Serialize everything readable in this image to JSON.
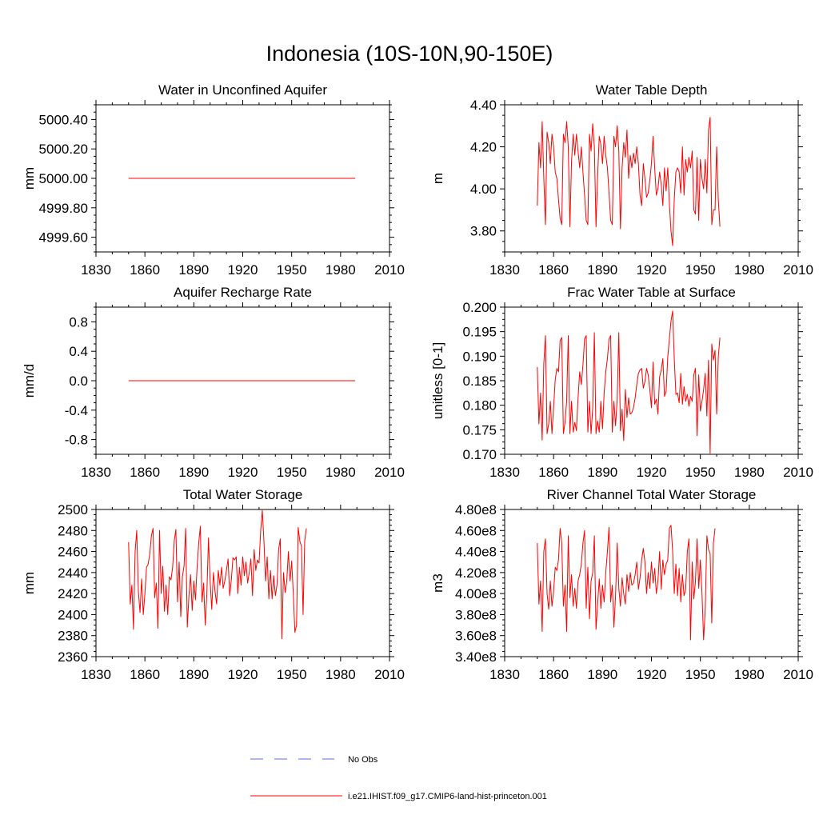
{
  "title": "Indonesia (10S-10N,90-150E)",
  "legend": {
    "entries": [
      {
        "label": "No Obs",
        "color": "#5b6fd6",
        "style": "dashed"
      },
      {
        "label": "i.e21.IHIST.f09_g17.CMIP6-land-hist-princeton.001",
        "color": "#ff0000",
        "style": "solid"
      }
    ]
  },
  "chart_data": [
    {
      "type": "line",
      "title": "Water in Unconfined Aquifer",
      "ylabel": "mm",
      "xlim": [
        1830,
        2010
      ],
      "xticks": [
        1830,
        1860,
        1890,
        1920,
        1950,
        1980,
        2010
      ],
      "ylim": [
        4999.5,
        5000.5
      ],
      "yticks": [
        4999.6,
        4999.8,
        5000.0,
        5000.2,
        5000.4
      ],
      "ytick_labels": [
        "4999.60",
        "4999.80",
        "5000.00",
        "5000.20",
        "5000.40"
      ],
      "x_start": 1850,
      "series": [
        {
          "name": "i.e21.IHIST.f09_g17.CMIP6-land-hist-princeton.001",
          "color": "#ff0000",
          "values": [
            5000,
            5000,
            5000,
            5000,
            5000,
            5000,
            5000,
            5000,
            5000,
            5000,
            5000,
            5000,
            5000,
            5000,
            5000,
            5000,
            5000,
            5000,
            5000,
            5000,
            5000,
            5000,
            5000,
            5000,
            5000,
            5000,
            5000,
            5000,
            5000,
            5000,
            5000,
            5000,
            5000,
            5000,
            5000,
            5000,
            5000,
            5000,
            5000,
            5000,
            5000,
            5000,
            5000,
            5000,
            5000,
            5000,
            5000,
            5000,
            5000,
            5000,
            5000,
            5000,
            5000,
            5000,
            5000,
            5000,
            5000,
            5000,
            5000,
            5000,
            5000,
            5000,
            5000,
            5000,
            5000,
            5000,
            5000,
            5000,
            5000,
            5000,
            5000,
            5000,
            5000,
            5000,
            5000,
            5000,
            5000,
            5000,
            5000,
            5000,
            5000,
            5000,
            5000,
            5000,
            5000,
            5000,
            5000,
            5000,
            5000,
            5000,
            5000,
            5000,
            5000,
            5000,
            5000,
            5000,
            5000,
            5000,
            5000,
            5000,
            5000,
            5000,
            5000,
            5000,
            5000,
            5000,
            5000,
            5000,
            5000,
            5000,
            5000,
            5000,
            5000,
            5000,
            5000,
            5000,
            5000,
            5000,
            5000,
            5000,
            5000,
            5000,
            5000,
            5000,
            5000,
            5000,
            5000,
            5000,
            5000,
            5000,
            5000,
            5000,
            5000,
            5000,
            5000,
            5000,
            5000,
            5000,
            5000,
            5000
          ]
        }
      ]
    },
    {
      "type": "line",
      "title": "Water Table Depth",
      "ylabel": "m",
      "xlim": [
        1830,
        2010
      ],
      "xticks": [
        1830,
        1860,
        1890,
        1920,
        1950,
        1980,
        2010
      ],
      "ylim": [
        3.7,
        4.4
      ],
      "yticks": [
        3.8,
        4.0,
        4.2,
        4.4
      ],
      "ytick_labels": [
        "3.80",
        "4.00",
        "4.20",
        "4.40"
      ],
      "x_start": 1850,
      "series": [
        {
          "name": "i.e21.IHIST.f09_g17.CMIP6-land-hist-princeton.001",
          "color": "#ff0000",
          "values": [
            3.92,
            4.22,
            4.1,
            4.32,
            4.05,
            3.83,
            4.27,
            4.22,
            4.12,
            4.26,
            4.2,
            4.08,
            4.05,
            3.95,
            3.86,
            3.83,
            4.26,
            4.22,
            4.32,
            4.2,
            3.82,
            4.13,
            4.26,
            4.16,
            4.26,
            4.18,
            4.1,
            4.2,
            4.08,
            3.97,
            3.85,
            3.83,
            4.26,
            4.18,
            4.31,
            4.2,
            3.82,
            4.06,
            4.25,
            4.21,
            4.12,
            4.25,
            4.16,
            4.1,
            3.98,
            3.85,
            3.83,
            4.25,
            4.2,
            4.3,
            4.18,
            3.81,
            4.1,
            4.22,
            4.15,
            4.28,
            4.05,
            4.16,
            4.1,
            4.17,
            4.12,
            4.2,
            4.12,
            3.97,
            3.92,
            4.12,
            4.05,
            3.96,
            3.98,
            4.04,
            4.12,
            4.25,
            4.1,
            3.97,
            4.0,
            4.08,
            4.02,
            3.92,
            4.1,
            3.99,
            4.1,
            3.93,
            3.8,
            3.73,
            3.95,
            4.08,
            4.1,
            4.08,
            3.98,
            4.2,
            3.97,
            4.14,
            4.08,
            4.15,
            4.1,
            4.18,
            3.9,
            3.88,
            4.15,
            3.85,
            4.14,
            4.05,
            4.0,
            4.14,
            3.98,
            4.28,
            4.34,
            3.83,
            3.9,
            3.9,
            4.2,
            3.95,
            3.82
          ]
        }
      ]
    },
    {
      "type": "line",
      "title": "Aquifer Recharge Rate",
      "ylabel": "mm/d",
      "xlim": [
        1830,
        2010
      ],
      "xticks": [
        1830,
        1860,
        1890,
        1920,
        1950,
        1980,
        2010
      ],
      "ylim": [
        -1.0,
        1.0
      ],
      "yticks": [
        -0.8,
        -0.4,
        0.0,
        0.4,
        0.8
      ],
      "ytick_labels": [
        "-0.8",
        "-0.4",
        "0.0",
        "0.4",
        "0.8"
      ],
      "x_start": 1850,
      "series": [
        {
          "name": "i.e21.IHIST.f09_g17.CMIP6-land-hist-princeton.001",
          "color": "#ff0000",
          "values": [
            0,
            0,
            0,
            0,
            0,
            0,
            0,
            0,
            0,
            0,
            0,
            0,
            0,
            0,
            0,
            0,
            0,
            0,
            0,
            0,
            0,
            0,
            0,
            0,
            0,
            0,
            0,
            0,
            0,
            0,
            0,
            0,
            0,
            0,
            0,
            0,
            0,
            0,
            0,
            0,
            0,
            0,
            0,
            0,
            0,
            0,
            0,
            0,
            0,
            0,
            0,
            0,
            0,
            0,
            0,
            0,
            0,
            0,
            0,
            0,
            0,
            0,
            0,
            0,
            0,
            0,
            0,
            0,
            0,
            0,
            0,
            0,
            0,
            0,
            0,
            0,
            0,
            0,
            0,
            0,
            0,
            0,
            0,
            0,
            0,
            0,
            0,
            0,
            0,
            0,
            0,
            0,
            0,
            0,
            0,
            0,
            0,
            0,
            0,
            0,
            0,
            0,
            0,
            0,
            0,
            0,
            0,
            0,
            0,
            0,
            0,
            0,
            0,
            0,
            0,
            0,
            0,
            0,
            0,
            0,
            0,
            0,
            0,
            0,
            0,
            0,
            0,
            0,
            0,
            0,
            0,
            0,
            0,
            0,
            0,
            0,
            0,
            0,
            0,
            0
          ]
        }
      ]
    },
    {
      "type": "line",
      "title": "Frac Water Table at Surface",
      "ylabel": "unitless [0-1]",
      "xlim": [
        1830,
        2010
      ],
      "xticks": [
        1830,
        1860,
        1890,
        1920,
        1950,
        1980,
        2010
      ],
      "ylim": [
        0.17,
        0.2
      ],
      "yticks": [
        0.17,
        0.175,
        0.18,
        0.185,
        0.19,
        0.195,
        0.2
      ],
      "ytick_labels": [
        "0.170",
        "0.175",
        "0.180",
        "0.185",
        "0.190",
        "0.195",
        "0.200"
      ],
      "x_start": 1850,
      "series": [
        {
          "name": "i.e21.IHIST.f09_g17.CMIP6-land-hist-princeton.001",
          "color": "#ff0000",
          "values": [
            0.1878,
            0.1762,
            0.1825,
            0.1729,
            0.1885,
            0.1942,
            0.1742,
            0.1762,
            0.1808,
            0.1742,
            0.1795,
            0.1852,
            0.1875,
            0.1868,
            0.1932,
            0.1938,
            0.1742,
            0.1765,
            0.1808,
            0.1942,
            0.1742,
            0.1808,
            0.1745,
            0.1765,
            0.1748,
            0.1815,
            0.1868,
            0.1842,
            0.1882,
            0.1935,
            0.1942,
            0.1745,
            0.1808,
            0.1742,
            0.1795,
            0.1948,
            0.1742,
            0.1768,
            0.1745,
            0.1808,
            0.1752,
            0.1825,
            0.1868,
            0.1895,
            0.1935,
            0.1942,
            0.1745,
            0.1808,
            0.1758,
            0.1812,
            0.1948,
            0.1748,
            0.1792,
            0.1728,
            0.1832,
            0.1775,
            0.1815,
            0.1782,
            0.1785,
            0.1795,
            0.1815,
            0.1842,
            0.1865,
            0.1872,
            0.1875,
            0.1835,
            0.1848,
            0.1875,
            0.1862,
            0.1832,
            0.1795,
            0.1888,
            0.1802,
            0.1812,
            0.1782,
            0.1858,
            0.1872,
            0.1895,
            0.1818,
            0.1828,
            0.1898,
            0.1935,
            0.1972,
            0.1992,
            0.1895,
            0.1822,
            0.1825,
            0.1805,
            0.1865,
            0.1802,
            0.1838,
            0.1808,
            0.1822,
            0.1798,
            0.1818,
            0.1808,
            0.1862,
            0.1875,
            0.1738,
            0.1862,
            0.1788,
            0.1808,
            0.1832,
            0.1865,
            0.1778,
            0.1892,
            0.1702,
            0.1925,
            0.1892,
            0.1912,
            0.1782,
            0.1898,
            0.1938
          ]
        }
      ]
    },
    {
      "type": "line",
      "title": "Total Water Storage",
      "ylabel": "mm",
      "xlim": [
        1830,
        2010
      ],
      "xticks": [
        1830,
        1860,
        1890,
        1920,
        1950,
        1980,
        2010
      ],
      "ylim": [
        2360,
        2500
      ],
      "yticks": [
        2360,
        2380,
        2400,
        2420,
        2440,
        2460,
        2480,
        2500
      ],
      "ytick_labels": [
        "2360",
        "2380",
        "2400",
        "2420",
        "2440",
        "2460",
        "2480",
        "2500"
      ],
      "x_start": 1850,
      "series": [
        {
          "name": "i.e21.IHIST.f09_g17.CMIP6-land-hist-princeton.001",
          "color": "#ff0000",
          "values": [
            2469,
            2410,
            2428,
            2386,
            2460,
            2480,
            2422,
            2402,
            2434,
            2400,
            2420,
            2445,
            2448,
            2458,
            2475,
            2482,
            2416,
            2430,
            2387,
            2480,
            2420,
            2446,
            2403,
            2428,
            2400,
            2436,
            2433,
            2445,
            2470,
            2481,
            2412,
            2450,
            2398,
            2436,
            2446,
            2482,
            2388,
            2418,
            2438,
            2404,
            2432,
            2414,
            2445,
            2468,
            2484,
            2412,
            2430,
            2390,
            2420,
            2473,
            2432,
            2405,
            2440,
            2422,
            2410,
            2442,
            2428,
            2445,
            2425,
            2432,
            2442,
            2453,
            2418,
            2433,
            2454,
            2452,
            2455,
            2420,
            2445,
            2428,
            2455,
            2437,
            2450,
            2430,
            2440,
            2453,
            2418,
            2462,
            2442,
            2452,
            2449,
            2480,
            2499,
            2470,
            2432,
            2455,
            2415,
            2442,
            2415,
            2437,
            2418,
            2428,
            2462,
            2472,
            2377,
            2440,
            2421,
            2432,
            2460,
            2432,
            2451,
            2420,
            2383,
            2390,
            2483,
            2470,
            2465,
            2400,
            2470,
            2482
          ]
        }
      ]
    },
    {
      "type": "line",
      "title": "River Channel Total Water Storage",
      "ylabel": "m3",
      "xlim": [
        1830,
        2010
      ],
      "xticks": [
        1830,
        1860,
        1890,
        1920,
        1950,
        1980,
        2010
      ],
      "ylim": [
        340000000,
        480000000
      ],
      "yticks": [
        340000000,
        360000000,
        380000000,
        400000000,
        420000000,
        440000000,
        460000000,
        480000000
      ],
      "ytick_labels": [
        "3.40e8",
        "3.60e8",
        "3.80e8",
        "4.00e8",
        "4.20e8",
        "4.40e8",
        "4.60e8",
        "4.80e8"
      ],
      "x_start": 1850,
      "series": [
        {
          "name": "i.e21.IHIST.f09_g17.CMIP6-land-hist-princeton.001",
          "color": "#ff0000",
          "values": [
            448000000,
            390000000,
            412000000,
            364000000,
            440000000,
            452000000,
            400000000,
            385000000,
            412000000,
            388000000,
            402000000,
            425000000,
            422000000,
            432000000,
            462000000,
            448000000,
            388000000,
            408000000,
            364000000,
            455000000,
            396000000,
            418000000,
            388000000,
            405000000,
            386000000,
            412000000,
            418000000,
            428000000,
            448000000,
            460000000,
            386000000,
            425000000,
            376000000,
            412000000,
            420000000,
            455000000,
            366000000,
            390000000,
            414000000,
            386000000,
            408000000,
            392000000,
            420000000,
            440000000,
            463000000,
            392000000,
            408000000,
            368000000,
            398000000,
            448000000,
            405000000,
            388000000,
            415000000,
            400000000,
            390000000,
            418000000,
            402000000,
            420000000,
            408000000,
            410000000,
            418000000,
            430000000,
            404000000,
            415000000,
            432000000,
            443000000,
            430000000,
            400000000,
            420000000,
            405000000,
            430000000,
            410000000,
            424000000,
            400000000,
            412000000,
            440000000,
            404000000,
            432000000,
            418000000,
            428000000,
            432000000,
            462000000,
            465000000,
            440000000,
            400000000,
            428000000,
            398000000,
            424000000,
            392000000,
            418000000,
            398000000,
            404000000,
            440000000,
            452000000,
            356000000,
            430000000,
            395000000,
            412000000,
            452000000,
            405000000,
            432000000,
            400000000,
            356000000,
            385000000,
            455000000,
            442000000,
            438000000,
            372000000,
            448000000,
            462000000
          ]
        }
      ]
    }
  ]
}
